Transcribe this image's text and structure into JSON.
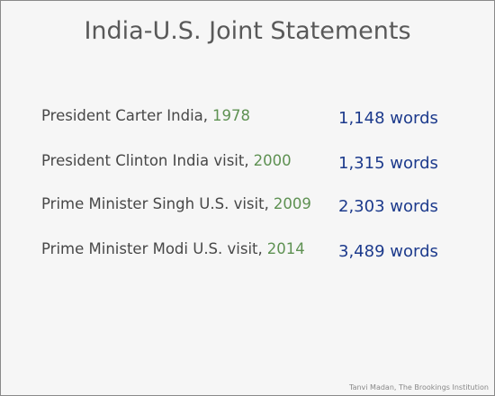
{
  "header": {
    "title": "India-U.S. Joint Statements"
  },
  "table": {
    "rows": [
      {
        "label": "President Carter India,",
        "year": "1978",
        "count": "1,148 words"
      },
      {
        "label": "President Clinton India visit,",
        "year": "2000",
        "count": "1,315 words"
      },
      {
        "label": "Prime Minister Singh U.S. visit,",
        "year": "2009",
        "count": "2,303 words"
      },
      {
        "label": "Prime Minister Modi U.S. visit,",
        "year": "2014",
        "count": "3,489 words"
      }
    ]
  },
  "footer": {
    "source": "Tanvi Madan, The Brookings Institution"
  }
}
